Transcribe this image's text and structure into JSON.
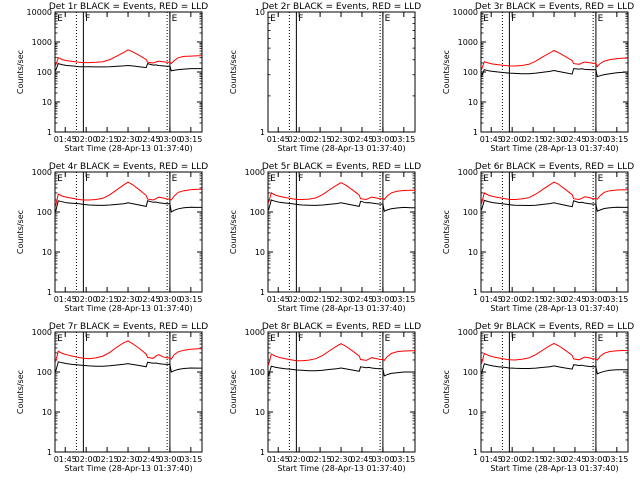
{
  "colors": {
    "events": "#000000",
    "lld": "#ff0000",
    "axes": "#000000",
    "background": "#ffffff"
  },
  "common": {
    "xlabel": "Start Time (28-Apr-13 01:37:40)",
    "ylabel": "Counts/sec",
    "x_ticks": [
      "01:45",
      "02:00",
      "02:15",
      "02:30",
      "02:45",
      "03:00",
      "03:15"
    ],
    "x_ticks_minutes": [
      105,
      120,
      135,
      150,
      165,
      180,
      195
    ],
    "xlim_minutes": [
      97.67,
      203.0
    ],
    "solid_vlines_minutes": [
      118,
      180
    ],
    "dotted_vlines_minutes": [
      113,
      178
    ],
    "marker_labels": [
      "E",
      "F",
      "E"
    ],
    "marker_labels_minutes": [
      98.5,
      118.5,
      180.5
    ],
    "grid": false,
    "legend": "title"
  },
  "chart_data": [
    {
      "type": "line",
      "title": "Det 1r BLACK = Events, RED = LLD",
      "ylog": true,
      "ylim": [
        1,
        10000
      ],
      "y_ticks": [
        "1",
        "10",
        "100",
        "1000",
        "10000"
      ],
      "x": [
        98,
        100,
        103,
        106,
        110,
        115,
        118,
        122,
        127,
        132,
        137,
        142,
        147,
        150,
        153,
        158,
        163,
        164,
        168,
        170,
        172,
        175,
        178,
        180,
        181,
        183,
        186,
        190,
        195,
        200,
        203
      ],
      "series": [
        {
          "name": "Events",
          "values": [
            110,
            190,
            175,
            165,
            160,
            150,
            150,
            150,
            148,
            148,
            150,
            155,
            160,
            165,
            160,
            150,
            140,
            190,
            170,
            172,
            165,
            160,
            155,
            155,
            110,
            115,
            120,
            125,
            130,
            130,
            130
          ]
        },
        {
          "name": "LLD",
          "values": [
            160,
            300,
            260,
            240,
            225,
            210,
            205,
            205,
            210,
            220,
            260,
            340,
            450,
            550,
            480,
            360,
            260,
            210,
            200,
            215,
            230,
            220,
            210,
            210,
            190,
            240,
            300,
            330,
            340,
            350,
            350
          ]
        }
      ]
    },
    {
      "type": "line",
      "title": "Det 2r BLACK = Events, RED = LLD",
      "ylog": true,
      "ylim": [
        1,
        10
      ],
      "y_ticks": [
        "1",
        "10"
      ],
      "x": [],
      "series": []
    },
    {
      "type": "line",
      "title": "Det 3r BLACK = Events, RED = LLD",
      "ylog": true,
      "ylim": [
        1,
        10000
      ],
      "y_ticks": [
        "1",
        "10",
        "100",
        "1000",
        "10000"
      ],
      "x": [
        98,
        100,
        103,
        106,
        110,
        115,
        118,
        122,
        127,
        132,
        137,
        142,
        147,
        150,
        153,
        158,
        163,
        164,
        168,
        170,
        172,
        175,
        178,
        180,
        181,
        183,
        186,
        190,
        195,
        200,
        203
      ],
      "series": [
        {
          "name": "Events",
          "values": [
            70,
            120,
            110,
            105,
            100,
            95,
            92,
            90,
            88,
            88,
            92,
            98,
            105,
            112,
            105,
            95,
            85,
            130,
            125,
            128,
            122,
            120,
            118,
            118,
            70,
            75,
            82,
            88,
            95,
            98,
            100
          ]
        },
        {
          "name": "LLD",
          "values": [
            120,
            220,
            200,
            185,
            175,
            165,
            160,
            158,
            165,
            180,
            230,
            320,
            430,
            520,
            450,
            330,
            240,
            190,
            180,
            200,
            215,
            205,
            195,
            195,
            150,
            190,
            230,
            260,
            280,
            290,
            290
          ]
        }
      ]
    },
    {
      "type": "line",
      "title": "Det 4r BLACK = Events, RED = LLD",
      "ylog": true,
      "ylim": [
        1,
        1000
      ],
      "y_ticks": [
        "1",
        "10",
        "100",
        "1000"
      ],
      "x": [
        98,
        100,
        103,
        106,
        110,
        115,
        118,
        122,
        127,
        132,
        137,
        142,
        147,
        150,
        153,
        158,
        163,
        164,
        168,
        170,
        172,
        175,
        178,
        180,
        181,
        183,
        186,
        190,
        195,
        200,
        203
      ],
      "series": [
        {
          "name": "Events",
          "values": [
            100,
            190,
            180,
            170,
            165,
            160,
            155,
            150,
            148,
            146,
            150,
            155,
            160,
            170,
            162,
            150,
            138,
            190,
            175,
            178,
            170,
            165,
            160,
            160,
            100,
            110,
            120,
            128,
            132,
            130,
            130
          ]
        },
        {
          "name": "LLD",
          "values": [
            140,
            280,
            250,
            235,
            220,
            205,
            200,
            200,
            205,
            220,
            270,
            360,
            480,
            560,
            490,
            360,
            260,
            210,
            200,
            215,
            235,
            225,
            210,
            210,
            200,
            250,
            310,
            340,
            360,
            370,
            370
          ]
        }
      ]
    },
    {
      "type": "line",
      "title": "Det 5r BLACK = Events, RED = LLD",
      "ylog": true,
      "ylim": [
        1,
        1000
      ],
      "y_ticks": [
        "1",
        "10",
        "100",
        "1000"
      ],
      "x": [
        98,
        100,
        103,
        106,
        110,
        115,
        118,
        122,
        127,
        132,
        137,
        142,
        147,
        150,
        153,
        158,
        163,
        164,
        168,
        170,
        172,
        175,
        178,
        180,
        181,
        183,
        186,
        190,
        195,
        200,
        203
      ],
      "series": [
        {
          "name": "Events",
          "values": [
            110,
            200,
            185,
            175,
            168,
            160,
            155,
            150,
            148,
            146,
            150,
            156,
            162,
            170,
            162,
            150,
            138,
            185,
            170,
            172,
            168,
            162,
            158,
            158,
            105,
            112,
            120,
            126,
            130,
            128,
            128
          ]
        },
        {
          "name": "LLD",
          "values": [
            170,
            300,
            265,
            245,
            230,
            215,
            205,
            205,
            210,
            225,
            275,
            365,
            470,
            540,
            480,
            360,
            265,
            215,
            205,
            220,
            235,
            225,
            215,
            215,
            205,
            250,
            300,
            330,
            345,
            350,
            350
          ]
        }
      ]
    },
    {
      "type": "line",
      "title": "Det 6r BLACK = Events, RED = LLD",
      "ylog": true,
      "ylim": [
        1,
        1000
      ],
      "y_ticks": [
        "1",
        "10",
        "100",
        "1000"
      ],
      "x": [
        98,
        100,
        103,
        106,
        110,
        115,
        118,
        122,
        127,
        132,
        137,
        142,
        147,
        150,
        153,
        158,
        163,
        164,
        168,
        170,
        172,
        175,
        178,
        180,
        181,
        183,
        186,
        190,
        195,
        200,
        203
      ],
      "series": [
        {
          "name": "Events",
          "values": [
            110,
            195,
            182,
            172,
            165,
            158,
            152,
            148,
            146,
            145,
            148,
            155,
            162,
            170,
            160,
            148,
            136,
            190,
            172,
            175,
            168,
            162,
            158,
            158,
            105,
            112,
            122,
            128,
            132,
            130,
            130
          ]
        },
        {
          "name": "LLD",
          "values": [
            160,
            300,
            265,
            245,
            230,
            215,
            205,
            205,
            212,
            228,
            280,
            370,
            480,
            560,
            500,
            370,
            270,
            215,
            205,
            220,
            240,
            230,
            215,
            215,
            210,
            255,
            310,
            340,
            355,
            360,
            360
          ]
        }
      ]
    },
    {
      "type": "line",
      "title": "Det 7r BLACK = Events, RED = LLD",
      "ylog": true,
      "ylim": [
        1,
        1000
      ],
      "y_ticks": [
        "1",
        "10",
        "100",
        "1000"
      ],
      "x": [
        98,
        100,
        103,
        106,
        110,
        115,
        118,
        122,
        127,
        132,
        137,
        142,
        147,
        150,
        153,
        158,
        163,
        164,
        168,
        170,
        172,
        175,
        178,
        180,
        181,
        183,
        186,
        190,
        195,
        200,
        203
      ],
      "series": [
        {
          "name": "Events",
          "values": [
            100,
            180,
            170,
            162,
            155,
            150,
            146,
            142,
            140,
            140,
            144,
            150,
            156,
            162,
            155,
            145,
            135,
            175,
            165,
            168,
            162,
            158,
            155,
            155,
            100,
            108,
            116,
            122,
            126,
            125,
            125
          ]
        },
        {
          "name": "LLD",
          "values": [
            180,
            330,
            290,
            270,
            250,
            230,
            220,
            215,
            225,
            250,
            310,
            420,
            540,
            600,
            520,
            390,
            280,
            230,
            220,
            250,
            270,
            240,
            225,
            225,
            210,
            270,
            320,
            350,
            370,
            380,
            380
          ]
        }
      ]
    },
    {
      "type": "line",
      "title": "Det 8r BLACK = Events, RED = LLD",
      "ylog": true,
      "ylim": [
        1,
        1000
      ],
      "y_ticks": [
        "1",
        "10",
        "100",
        "1000"
      ],
      "x": [
        98,
        100,
        103,
        106,
        110,
        115,
        118,
        122,
        127,
        132,
        137,
        142,
        147,
        150,
        153,
        158,
        163,
        164,
        168,
        170,
        172,
        175,
        178,
        180,
        181,
        183,
        186,
        190,
        195,
        200,
        203
      ],
      "series": [
        {
          "name": "Events",
          "values": [
            80,
            140,
            132,
            126,
            120,
            116,
            112,
            110,
            108,
            108,
            111,
            116,
            121,
            126,
            120,
            112,
            104,
            135,
            128,
            130,
            126,
            122,
            120,
            120,
            80,
            86,
            92,
            96,
            100,
            100,
            100
          ]
        },
        {
          "name": "LLD",
          "values": [
            150,
            280,
            250,
            230,
            215,
            200,
            192,
            190,
            198,
            215,
            262,
            345,
            445,
            510,
            450,
            340,
            250,
            205,
            195,
            210,
            228,
            218,
            205,
            205,
            195,
            240,
            290,
            320,
            335,
            340,
            340
          ]
        }
      ]
    },
    {
      "type": "line",
      "title": "Det 9r BLACK = Events, RED = LLD",
      "ylog": true,
      "ylim": [
        1,
        1000
      ],
      "y_ticks": [
        "1",
        "10",
        "100",
        "1000"
      ],
      "x": [
        98,
        100,
        103,
        106,
        110,
        115,
        118,
        122,
        127,
        132,
        137,
        142,
        147,
        150,
        153,
        158,
        163,
        164,
        168,
        170,
        172,
        175,
        178,
        180,
        181,
        183,
        186,
        190,
        195,
        200,
        203
      ],
      "series": [
        {
          "name": "Events",
          "values": [
            90,
            160,
            150,
            142,
            136,
            130,
            126,
            124,
            122,
            122,
            125,
            130,
            136,
            142,
            135,
            126,
            118,
            152,
            145,
            148,
            142,
            138,
            135,
            135,
            90,
            96,
            104,
            110,
            114,
            114,
            114
          ]
        },
        {
          "name": "LLD",
          "values": [
            160,
            290,
            260,
            240,
            225,
            210,
            202,
            200,
            208,
            225,
            272,
            355,
            455,
            520,
            460,
            350,
            260,
            212,
            202,
            218,
            236,
            226,
            212,
            212,
            200,
            245,
            295,
            325,
            340,
            345,
            345
          ]
        }
      ]
    }
  ]
}
